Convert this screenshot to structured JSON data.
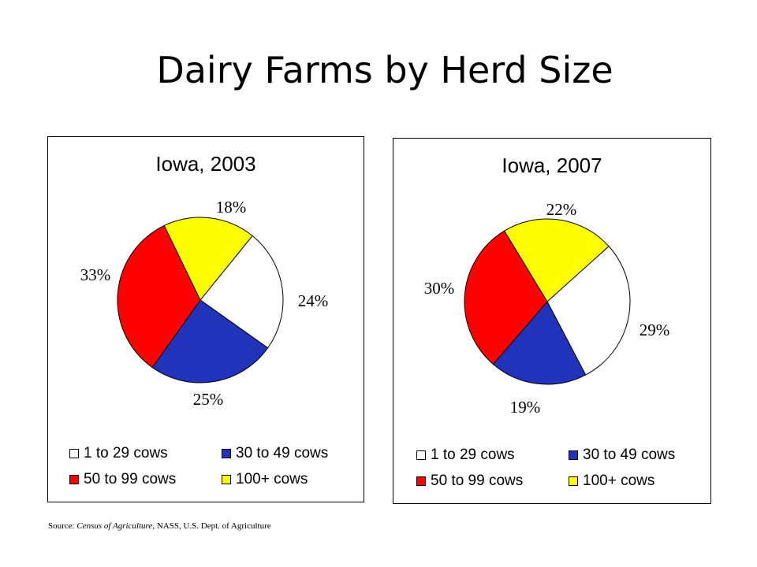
{
  "slide": {
    "title": "Dairy Farms by Herd Size",
    "source_prefix": "Source: ",
    "source_italic": "Census of Agriculture",
    "source_suffix": ", NASS, U.S. Dept. of Agriculture"
  },
  "chart_data": [
    {
      "type": "pie",
      "title": "Iowa, 2003",
      "categories": [
        "1 to 29 cows",
        "30 to 49 cows",
        "50 to 99 cows",
        "100+ cows"
      ],
      "values": [
        24,
        25,
        33,
        18
      ],
      "labels": [
        "24%",
        "25%",
        "33%",
        "18%"
      ],
      "colors": [
        "#ffffff",
        "#2233bb",
        "#ff0000",
        "#ffff00"
      ],
      "legend": "bottom"
    },
    {
      "type": "pie",
      "title": "Iowa, 2007",
      "categories": [
        "1 to 29 cows",
        "30 to 49 cows",
        "50 to 99 cows",
        "100+ cows"
      ],
      "values": [
        29,
        19,
        30,
        22
      ],
      "labels": [
        "29%",
        "19%",
        "30%",
        "22%"
      ],
      "colors": [
        "#ffffff",
        "#2233bb",
        "#ff0000",
        "#ffff00"
      ],
      "legend": "bottom"
    }
  ]
}
